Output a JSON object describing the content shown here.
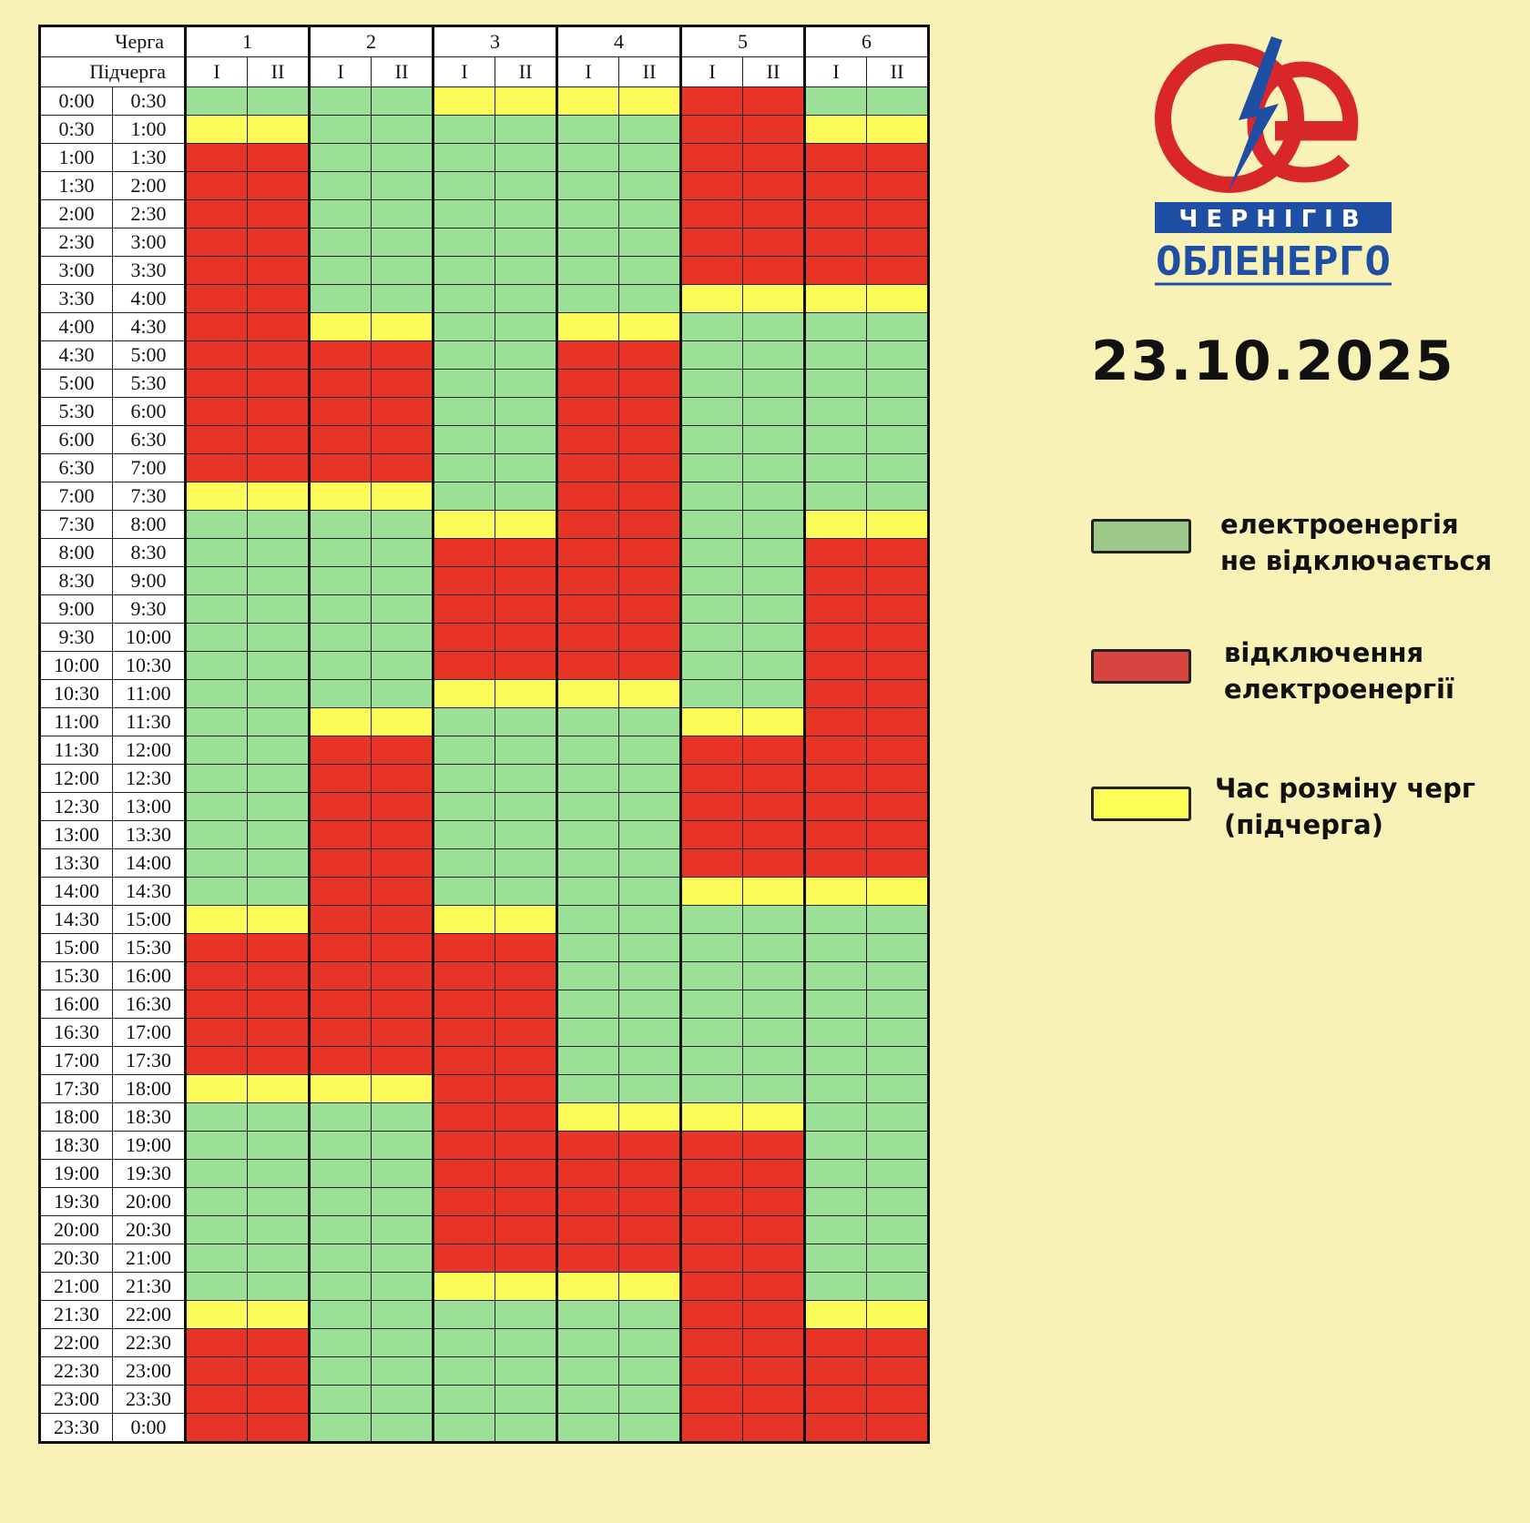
{
  "table": {
    "queue_header": "Черга",
    "subqueue_header": "Підчерга",
    "queues": [
      "1",
      "2",
      "3",
      "4",
      "5",
      "6"
    ],
    "subqueues": [
      "I",
      "II"
    ],
    "status_codes": {
      "G": "on",
      "R": "off",
      "Y": "switch"
    },
    "rows": [
      {
        "from": "0:00",
        "to": "0:30",
        "status": "GGGGYYYYRRGG"
      },
      {
        "from": "0:30",
        "to": "1:00",
        "status": "YYGGGGGGRRYY"
      },
      {
        "from": "1:00",
        "to": "1:30",
        "status": "RRGGGGGGRRRR"
      },
      {
        "from": "1:30",
        "to": "2:00",
        "status": "RRGGGGGGRRRR"
      },
      {
        "from": "2:00",
        "to": "2:30",
        "status": "RRGGGGGGRRRR"
      },
      {
        "from": "2:30",
        "to": "3:00",
        "status": "RRGGGGGGRRRR"
      },
      {
        "from": "3:00",
        "to": "3:30",
        "status": "RRGGGGGGRRRR"
      },
      {
        "from": "3:30",
        "to": "4:00",
        "status": "RRGGGGGGYYYY"
      },
      {
        "from": "4:00",
        "to": "4:30",
        "status": "RRYYGGYYGGGG"
      },
      {
        "from": "4:30",
        "to": "5:00",
        "status": "RRRRGGRRGGGG"
      },
      {
        "from": "5:00",
        "to": "5:30",
        "status": "RRRRGGRRGGGG"
      },
      {
        "from": "5:30",
        "to": "6:00",
        "status": "RRRRGGRRGGGG"
      },
      {
        "from": "6:00",
        "to": "6:30",
        "status": "RRRRGGRRGGGG"
      },
      {
        "from": "6:30",
        "to": "7:00",
        "status": "RRRRGGRRGGGG"
      },
      {
        "from": "7:00",
        "to": "7:30",
        "status": "YYYYGGRRGGGG"
      },
      {
        "from": "7:30",
        "to": "8:00",
        "status": "GGGGYYRRGGYY"
      },
      {
        "from": "8:00",
        "to": "8:30",
        "status": "GGGGRRRRGGRR"
      },
      {
        "from": "8:30",
        "to": "9:00",
        "status": "GGGGRRRRGGRR"
      },
      {
        "from": "9:00",
        "to": "9:30",
        "status": "GGGGRRRRGGRR"
      },
      {
        "from": "9:30",
        "to": "10:00",
        "status": "GGGGRRRRGGRR"
      },
      {
        "from": "10:00",
        "to": "10:30",
        "status": "GGGGRRRRGGRR"
      },
      {
        "from": "10:30",
        "to": "11:00",
        "status": "GGGGYYYYGGRR"
      },
      {
        "from": "11:00",
        "to": "11:30",
        "status": "GGYYGGGGYYRR"
      },
      {
        "from": "11:30",
        "to": "12:00",
        "status": "GGRRGGGGRRRR"
      },
      {
        "from": "12:00",
        "to": "12:30",
        "status": "GGRRGGGGRRRR"
      },
      {
        "from": "12:30",
        "to": "13:00",
        "status": "GGRRGGGGRRRR"
      },
      {
        "from": "13:00",
        "to": "13:30",
        "status": "GGRRGGGGRRRR"
      },
      {
        "from": "13:30",
        "to": "14:00",
        "status": "GGRRGGGGRRRR"
      },
      {
        "from": "14:00",
        "to": "14:30",
        "status": "GGRRGGGGYYYY"
      },
      {
        "from": "14:30",
        "to": "15:00",
        "status": "YYRRYYGGGGGG"
      },
      {
        "from": "15:00",
        "to": "15:30",
        "status": "RRRRRRGGGGGG"
      },
      {
        "from": "15:30",
        "to": "16:00",
        "status": "RRRRRRGGGGGG"
      },
      {
        "from": "16:00",
        "to": "16:30",
        "status": "RRRRRRGGGGGG"
      },
      {
        "from": "16:30",
        "to": "17:00",
        "status": "RRRRRRGGGGGG"
      },
      {
        "from": "17:00",
        "to": "17:30",
        "status": "RRRRRRGGGGGG"
      },
      {
        "from": "17:30",
        "to": "18:00",
        "status": "YYYYRRGGGGGG"
      },
      {
        "from": "18:00",
        "to": "18:30",
        "status": "GGGGRRYYYYGG"
      },
      {
        "from": "18:30",
        "to": "19:00",
        "status": "GGGGRRRRRRGG"
      },
      {
        "from": "19:00",
        "to": "19:30",
        "status": "GGGGRRRRRRGG"
      },
      {
        "from": "19:30",
        "to": "20:00",
        "status": "GGGGRRRRRRGG"
      },
      {
        "from": "20:00",
        "to": "20:30",
        "status": "GGGGRRRRRRGG"
      },
      {
        "from": "20:30",
        "to": "21:00",
        "status": "GGGGRRRRRRGG"
      },
      {
        "from": "21:00",
        "to": "21:30",
        "status": "GGGGYYYYRRGG"
      },
      {
        "from": "21:30",
        "to": "22:00",
        "status": "YYGGGGGGRRYY"
      },
      {
        "from": "22:00",
        "to": "22:30",
        "status": "RRGGGGGGRRRR"
      },
      {
        "from": "22:30",
        "to": "23:00",
        "status": "RRGGGGGGRRRR"
      },
      {
        "from": "23:00",
        "to": "23:30",
        "status": "RRGGGGGGRRRR"
      },
      {
        "from": "23:30",
        "to": "0:00",
        "status": "RRGGGGGGRRRR"
      }
    ]
  },
  "logo": {
    "line1": "ЧЕРНІГІВ",
    "line2": "ОБЛЕНЕРГО",
    "colors": {
      "ring": "#d9262b",
      "bolt": "#1f4fa5",
      "banner": "#1f4fa5"
    }
  },
  "date": "23.10.2025",
  "legend": [
    {
      "status": "on",
      "color": "#9cc98a",
      "lines": [
        "електроенергія",
        "не відключається"
      ]
    },
    {
      "status": "off",
      "color": "#d64540",
      "lines": [
        "відключення",
        "електроенергії"
      ]
    },
    {
      "status": "switch",
      "color": "#fdfd58",
      "lines": [
        "Час розміну черг",
        "(підчерга)"
      ]
    }
  ],
  "colors": {
    "background": "#f8f2b6",
    "on": "#9cdf97",
    "off": "#e73426",
    "switch": "#fcfb57"
  }
}
